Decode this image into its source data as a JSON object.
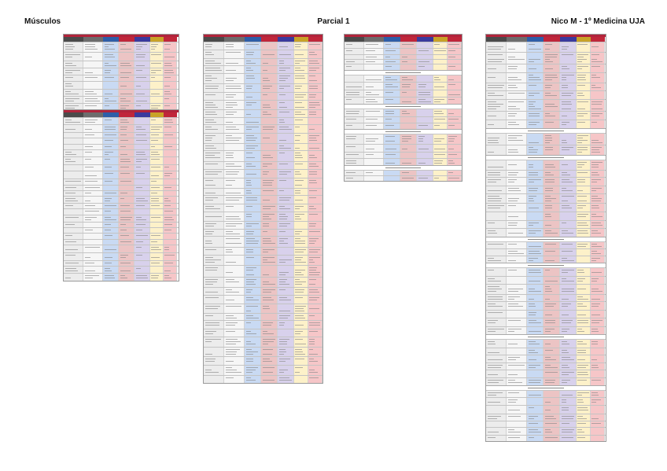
{
  "header": {
    "left": "Músculos",
    "center": "Parcial 1",
    "right": "Nico M - 1º Medicina UJA"
  },
  "colors": {
    "title_bar": "#b1243b",
    "col_header": [
      "#4a4a4a",
      "#6d6d6d",
      "#2e5ea8",
      "#c0263a",
      "#3a3a9e",
      "#c9a227",
      "#c0263a"
    ],
    "col_fill": [
      "#ececec",
      "#f6f6f6",
      "#c9daf3",
      "#ecc4c4",
      "#d8d1ec",
      "#fdf1c9",
      "#f6c6c8"
    ]
  }
}
